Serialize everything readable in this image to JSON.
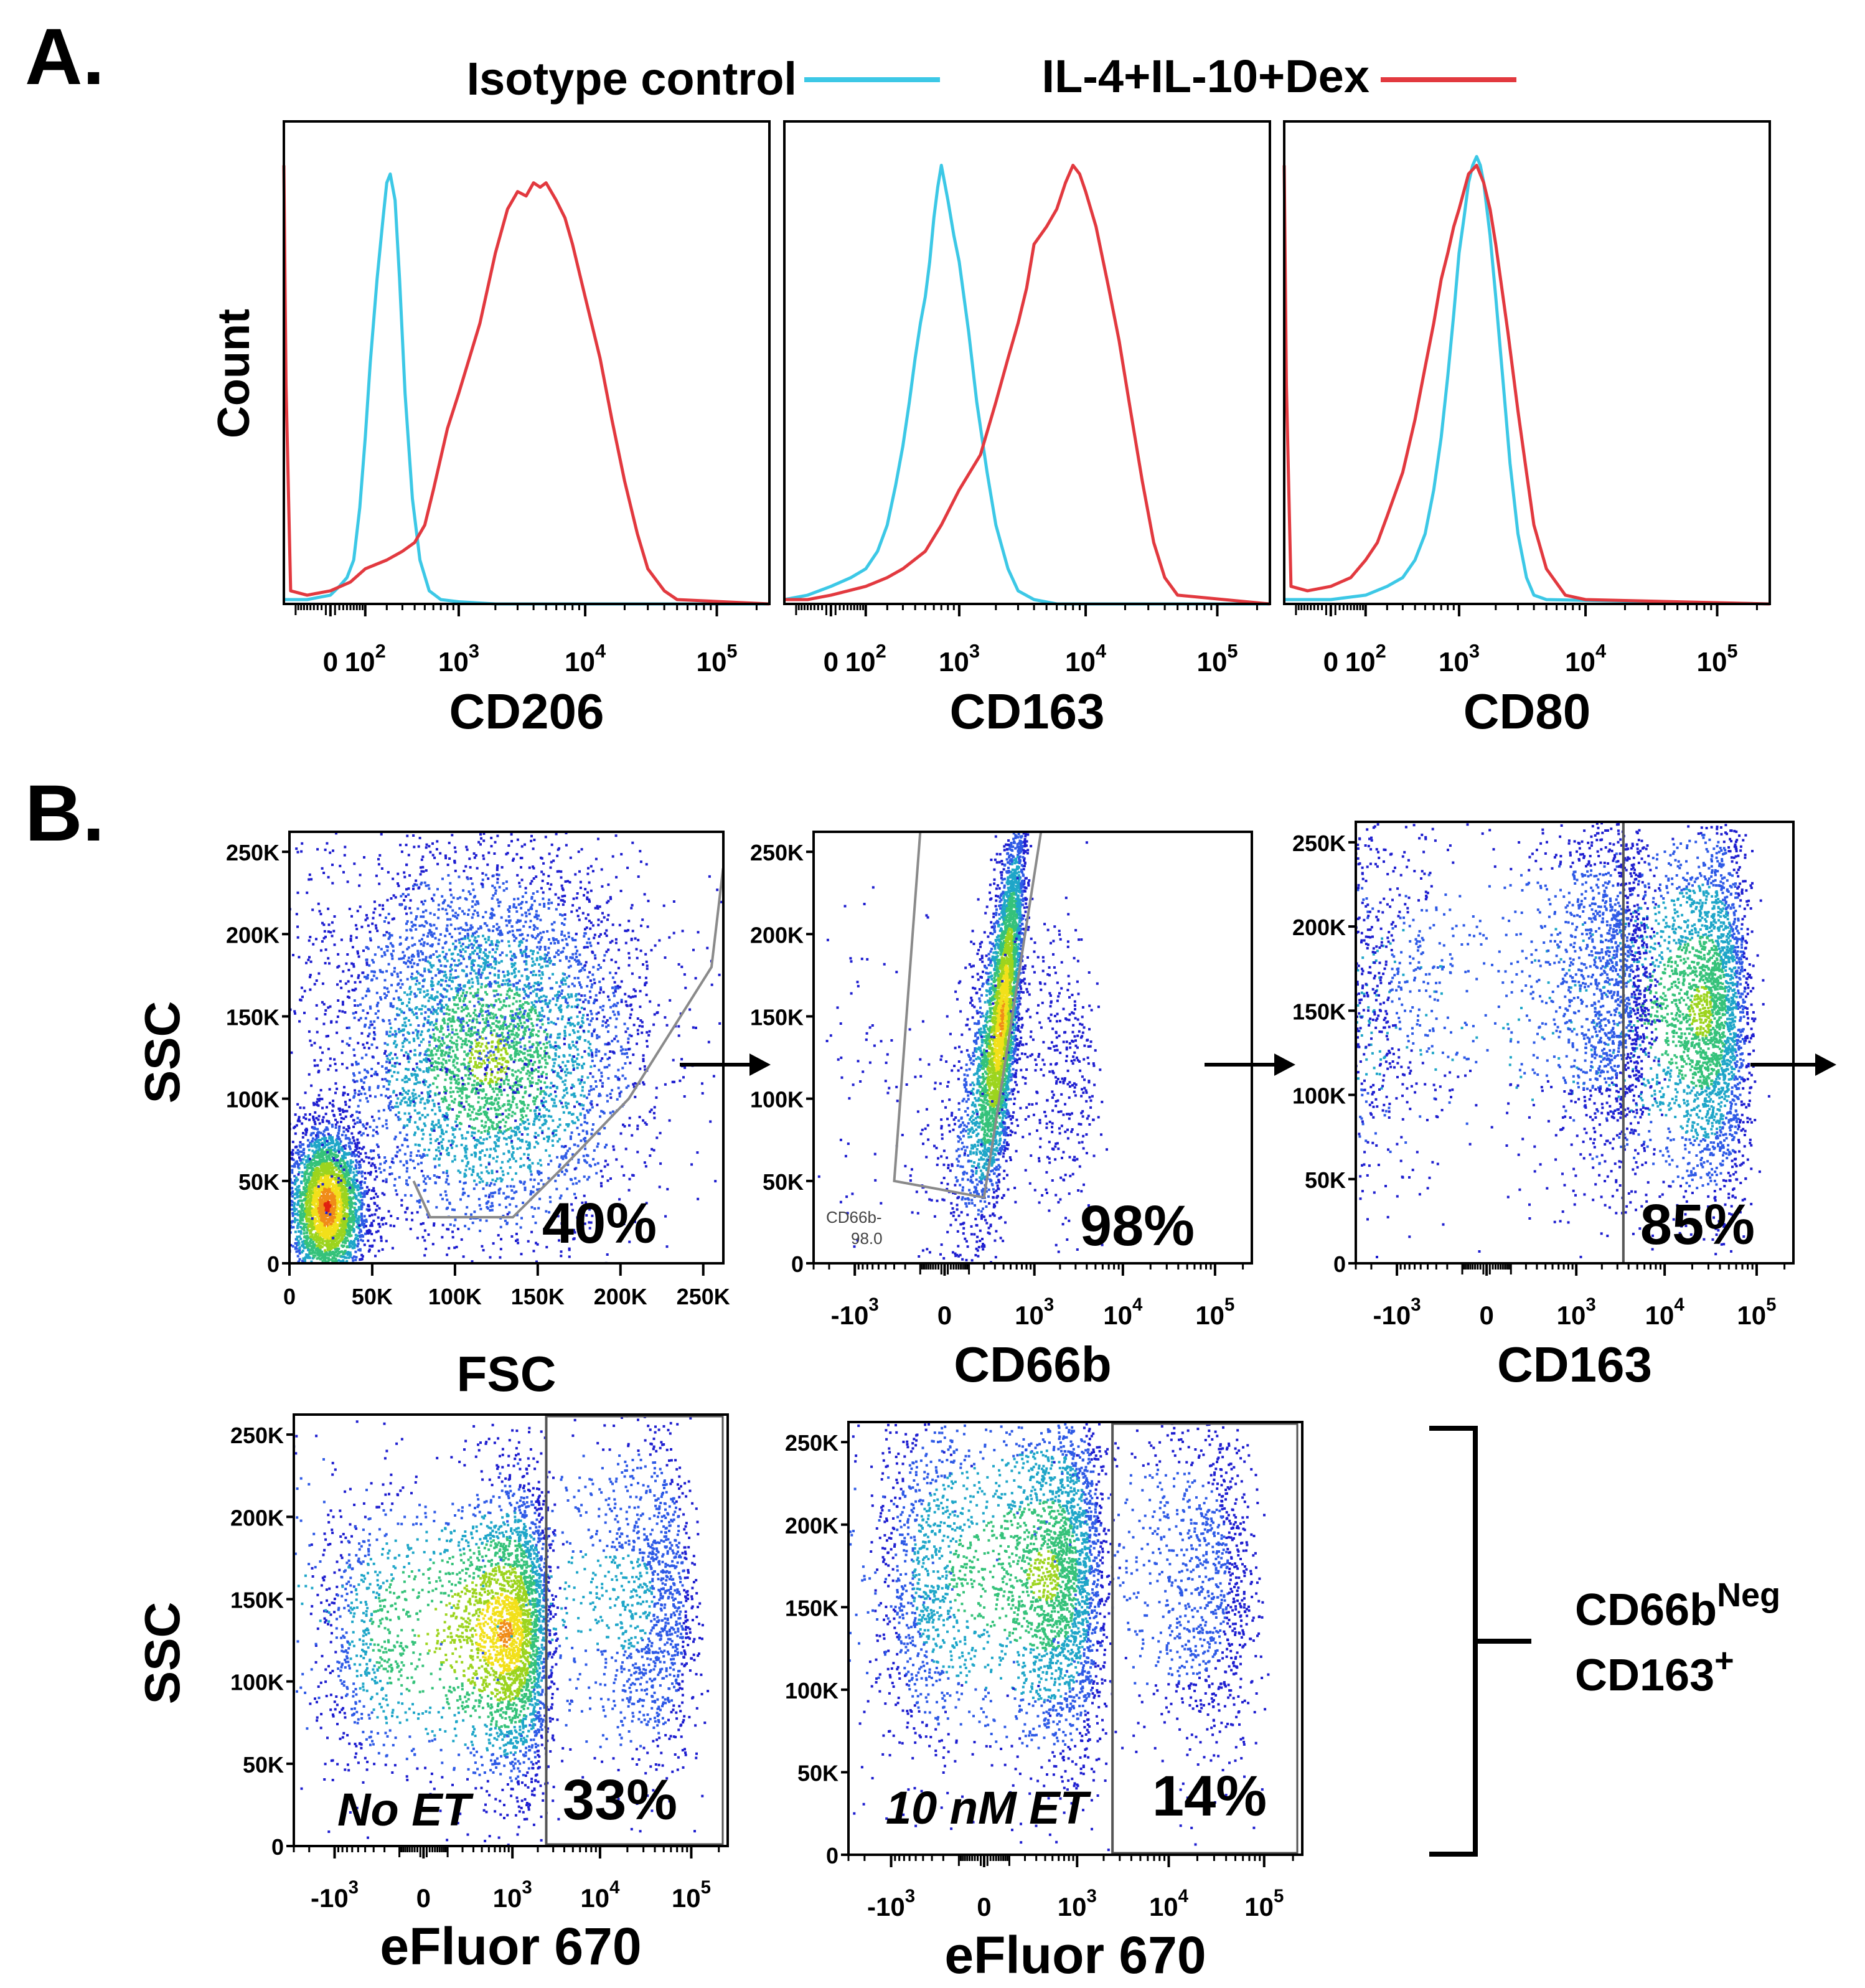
{
  "panel_a": {
    "label": "A.",
    "legend": [
      {
        "name": "Isotype control",
        "color": "#3cc8e6"
      },
      {
        "name": "IL-4+IL-10+Dex",
        "color": "#e2393f"
      }
    ],
    "ylabel": "Count"
  },
  "panel_b": {
    "label": "B.",
    "bracket_label_line1": "CD66b",
    "bracket_label_line1_sup": "Neg",
    "bracket_label_line2": "CD163",
    "bracket_label_line2_sup": "+"
  },
  "density_colors": [
    "#1f1fd0",
    "#2e5ae6",
    "#1fa6c8",
    "#35c27a",
    "#9cd41e",
    "#f2e01a",
    "#f08c18",
    "#e02010"
  ],
  "chart_data": [
    {
      "id": "a1",
      "type": "line",
      "title": "",
      "xlabel": "CD206",
      "ylabel": "Count",
      "xscale": "biexponential",
      "x_tick_labels": [
        {
          "base": "0",
          "exp": ""
        },
        {
          "base": "10",
          "exp": "2"
        },
        {
          "base": "10",
          "exp": "3"
        },
        {
          "base": "10",
          "exp": "4"
        },
        {
          "base": "10",
          "exp": "5"
        }
      ],
      "x_ticks": [
        0,
        100,
        1000,
        10000,
        100000
      ],
      "xlim": [
        -150,
        250000
      ],
      "ylim": [
        0,
        1.1
      ],
      "series": [
        {
          "name": "Isotype control",
          "color": "#3cc8e6",
          "x": [
            -150,
            -60,
            0,
            20,
            40,
            60,
            80,
            100,
            120,
            150,
            180,
            200,
            220,
            250,
            280,
            320,
            380,
            450,
            550,
            700,
            1000,
            2000,
            5000,
            250000
          ],
          "y": [
            0.01,
            0.01,
            0.02,
            0.04,
            0.06,
            0.1,
            0.22,
            0.38,
            0.55,
            0.74,
            0.88,
            0.96,
            0.98,
            0.92,
            0.74,
            0.48,
            0.24,
            0.1,
            0.03,
            0.01,
            0.005,
            0,
            0,
            0
          ]
        },
        {
          "name": "IL-4+IL-10+Dex",
          "color": "#e2393f",
          "x": [
            -150,
            -140,
            -120,
            -60,
            0,
            50,
            100,
            200,
            300,
            400,
            500,
            600,
            800,
            1000,
            1500,
            2000,
            2500,
            3000,
            3500,
            4000,
            4500,
            5000,
            6000,
            7000,
            8000,
            10000,
            13000,
            16000,
            20000,
            25000,
            30000,
            40000,
            50000,
            250000
          ],
          "y": [
            1.0,
            0.5,
            0.03,
            0.02,
            0.03,
            0.05,
            0.08,
            0.1,
            0.12,
            0.14,
            0.18,
            0.26,
            0.4,
            0.48,
            0.64,
            0.8,
            0.9,
            0.94,
            0.93,
            0.96,
            0.95,
            0.96,
            0.92,
            0.88,
            0.82,
            0.7,
            0.56,
            0.42,
            0.28,
            0.16,
            0.08,
            0.03,
            0.01,
            0
          ]
        }
      ]
    },
    {
      "id": "a2",
      "type": "line",
      "title": "",
      "xlabel": "CD163",
      "ylabel": "Count",
      "xscale": "biexponential",
      "x_tick_labels": [
        {
          "base": "0",
          "exp": ""
        },
        {
          "base": "10",
          "exp": "2"
        },
        {
          "base": "10",
          "exp": "3"
        },
        {
          "base": "10",
          "exp": "4"
        },
        {
          "base": "10",
          "exp": "5"
        }
      ],
      "x_ticks": [
        0,
        100,
        1000,
        10000,
        100000
      ],
      "xlim": [
        -150,
        250000
      ],
      "ylim": [
        0,
        1.1
      ],
      "series": [
        {
          "name": "Isotype control",
          "color": "#3cc8e6",
          "x": [
            -150,
            -60,
            0,
            50,
            100,
            150,
            200,
            250,
            300,
            350,
            400,
            450,
            500,
            550,
            600,
            650,
            700,
            800,
            900,
            1000,
            1200,
            1400,
            1700,
            2000,
            2500,
            3000,
            4000,
            6000,
            250000
          ],
          "y": [
            0.01,
            0.02,
            0.04,
            0.06,
            0.08,
            0.12,
            0.18,
            0.27,
            0.36,
            0.46,
            0.56,
            0.64,
            0.7,
            0.78,
            0.88,
            0.95,
            1.0,
            0.92,
            0.84,
            0.78,
            0.62,
            0.46,
            0.3,
            0.18,
            0.08,
            0.03,
            0.01,
            0,
            0
          ]
        },
        {
          "name": "IL-4+IL-10+Dex",
          "color": "#e2393f",
          "x": [
            -150,
            -60,
            0,
            100,
            200,
            300,
            500,
            700,
            1000,
            1500,
            2000,
            2500,
            3000,
            3500,
            4000,
            5000,
            6000,
            7000,
            8000,
            9000,
            10000,
            12000,
            15000,
            18000,
            22000,
            27000,
            33000,
            40000,
            50000,
            250000
          ],
          "y": [
            0.01,
            0.01,
            0.02,
            0.04,
            0.06,
            0.08,
            0.12,
            0.18,
            0.26,
            0.34,
            0.46,
            0.56,
            0.64,
            0.72,
            0.82,
            0.86,
            0.9,
            0.96,
            1.0,
            0.98,
            0.94,
            0.86,
            0.72,
            0.6,
            0.44,
            0.28,
            0.14,
            0.06,
            0.02,
            0
          ]
        }
      ]
    },
    {
      "id": "a3",
      "type": "line",
      "title": "",
      "xlabel": "CD80",
      "ylabel": "Count",
      "xscale": "biexponential",
      "x_tick_labels": [
        {
          "base": "0",
          "exp": ""
        },
        {
          "base": "10",
          "exp": "2"
        },
        {
          "base": "10",
          "exp": "3"
        },
        {
          "base": "10",
          "exp": "4"
        },
        {
          "base": "10",
          "exp": "5"
        }
      ],
      "x_ticks": [
        0,
        100,
        1000,
        10000,
        100000
      ],
      "xlim": [
        -150,
        250000
      ],
      "ylim": [
        0,
        1.1
      ],
      "series": [
        {
          "name": "Isotype control",
          "color": "#3cc8e6",
          "x": [
            -150,
            -60,
            0,
            100,
            200,
            300,
            400,
            500,
            600,
            700,
            800,
            900,
            1000,
            1100,
            1200,
            1300,
            1400,
            1500,
            1600,
            1800,
            2000,
            2300,
            2600,
            3000,
            3500,
            4000,
            5000,
            250000
          ],
          "y": [
            0.01,
            0.01,
            0.01,
            0.02,
            0.04,
            0.06,
            0.1,
            0.16,
            0.26,
            0.38,
            0.52,
            0.66,
            0.8,
            0.88,
            0.96,
            1.0,
            1.02,
            1.0,
            0.96,
            0.84,
            0.7,
            0.5,
            0.32,
            0.16,
            0.06,
            0.02,
            0.01,
            0
          ]
        },
        {
          "name": "IL-4+IL-10+Dex",
          "color": "#e2393f",
          "x": [
            -150,
            -140,
            -120,
            -60,
            0,
            50,
            100,
            150,
            200,
            300,
            400,
            500,
            600,
            700,
            800,
            900,
            1000,
            1200,
            1400,
            1600,
            1800,
            2000,
            2500,
            3000,
            3500,
            4000,
            5000,
            7000,
            10000,
            250000
          ],
          "y": [
            1.0,
            0.5,
            0.04,
            0.03,
            0.04,
            0.06,
            0.1,
            0.14,
            0.2,
            0.3,
            0.42,
            0.54,
            0.64,
            0.74,
            0.8,
            0.86,
            0.9,
            0.98,
            1.0,
            0.96,
            0.9,
            0.82,
            0.62,
            0.44,
            0.3,
            0.18,
            0.08,
            0.02,
            0.01,
            0
          ]
        }
      ]
    },
    {
      "id": "b1",
      "type": "scatter",
      "title": "",
      "xlabel": "FSC",
      "ylabel": "SSC",
      "xscale": "linear",
      "x_tick_labels": [
        {
          "base": "0",
          "exp": ""
        },
        {
          "base": "50K",
          "exp": ""
        },
        {
          "base": "100K",
          "exp": ""
        },
        {
          "base": "150K",
          "exp": ""
        },
        {
          "base": "200K",
          "exp": ""
        },
        {
          "base": "250K",
          "exp": ""
        }
      ],
      "x_ticks": [
        0,
        50000,
        100000,
        150000,
        200000,
        250000
      ],
      "y_tick_labels": [
        "0",
        "50K",
        "100K",
        "150K",
        "200K",
        "250K"
      ],
      "y_ticks": [
        0,
        50000,
        100000,
        150000,
        200000,
        250000
      ],
      "xlim": [
        0,
        262144
      ],
      "ylim": [
        0,
        262144
      ],
      "gate_percent": "40%",
      "gate_label": "",
      "gate_sublabel": "",
      "clusters": [
        {
          "cx": 22000,
          "cy": 35000,
          "sx": 12000,
          "sy": 25000,
          "n": 3200,
          "peak": 7
        },
        {
          "cx": 120000,
          "cy": 125000,
          "sx": 45000,
          "sy": 55000,
          "n": 3800,
          "peak": 4
        },
        {
          "cx": 110000,
          "cy": 180000,
          "sx": 60000,
          "sy": 55000,
          "n": 1200,
          "peak": 1
        }
      ],
      "gate_polygon": [
        [
          75000,
          50000
        ],
        [
          85000,
          28000
        ],
        [
          135000,
          28000
        ],
        [
          165000,
          58000
        ],
        [
          205000,
          100000
        ],
        [
          255000,
          180000
        ],
        [
          262000,
          240000
        ]
      ]
    },
    {
      "id": "b2",
      "type": "scatter",
      "title": "",
      "xlabel": "CD66b",
      "ylabel": "",
      "xscale": "biexponential",
      "x_tick_labels": [
        {
          "base": "-10",
          "exp": "3"
        },
        {
          "base": "0",
          "exp": ""
        },
        {
          "base": "10",
          "exp": "3"
        },
        {
          "base": "10",
          "exp": "4"
        },
        {
          "base": "10",
          "exp": "5"
        }
      ],
      "x_ticks": [
        -1000,
        0,
        1000,
        10000,
        100000
      ],
      "y_tick_labels": [
        "0",
        "50K",
        "100K",
        "150K",
        "200K",
        "250K"
      ],
      "y_ticks": [
        0,
        50000,
        100000,
        150000,
        200000,
        250000
      ],
      "xlim": [
        -3000,
        250000
      ],
      "ylim": [
        0,
        262144
      ],
      "gate_percent": "98%",
      "gate_label": "CD66b-",
      "gate_sublabel": "98.0",
      "clusters": [
        {
          "cx": 150,
          "cy": 150000,
          "sx": 120,
          "sy": 60000,
          "n": 4000,
          "peak": 6,
          "tilt": 1
        },
        {
          "cx": 1500,
          "cy": 120000,
          "sx": 1500,
          "sy": 50000,
          "n": 500,
          "peak": 0
        }
      ],
      "gate_polygon": [
        [
          -100,
          262144
        ],
        [
          -300,
          50000
        ],
        [
          200,
          40000
        ],
        [
          1200,
          262144
        ]
      ]
    },
    {
      "id": "b3",
      "type": "scatter",
      "title": "",
      "xlabel": "CD163",
      "ylabel": "",
      "xscale": "biexponential",
      "x_tick_labels": [
        {
          "base": "-10",
          "exp": "3"
        },
        {
          "base": "0",
          "exp": ""
        },
        {
          "base": "10",
          "exp": "3"
        },
        {
          "base": "10",
          "exp": "4"
        },
        {
          "base": "10",
          "exp": "5"
        }
      ],
      "x_ticks": [
        -1000,
        0,
        1000,
        10000,
        100000
      ],
      "y_tick_labels": [
        "0",
        "50K",
        "100K",
        "150K",
        "200K",
        "250K"
      ],
      "y_ticks": [
        0,
        50000,
        100000,
        150000,
        200000,
        250000
      ],
      "xlim": [
        -3000,
        250000
      ],
      "ylim": [
        0,
        262144
      ],
      "gate_percent": "85%",
      "gate_label": "",
      "gate_sublabel": "",
      "gate_x": 3500,
      "clusters": [
        {
          "cx": 25000,
          "cy": 150000,
          "sx": 25000,
          "sy": 55000,
          "n": 3500,
          "peak": 4
        },
        {
          "cx": 1500,
          "cy": 170000,
          "sx": 2500,
          "sy": 60000,
          "n": 2200,
          "peak": 1
        }
      ]
    },
    {
      "id": "b4",
      "type": "scatter",
      "title": "",
      "xlabel": "eFluor 670",
      "ylabel": "SSC",
      "xscale": "biexponential",
      "x_tick_labels": [
        {
          "base": "-10",
          "exp": "3"
        },
        {
          "base": "0",
          "exp": ""
        },
        {
          "base": "10",
          "exp": "3"
        },
        {
          "base": "10",
          "exp": "4"
        },
        {
          "base": "10",
          "exp": "5"
        }
      ],
      "x_ticks": [
        -1000,
        0,
        1000,
        10000,
        100000
      ],
      "y_tick_labels": [
        "0",
        "50K",
        "100K",
        "150K",
        "200K",
        "250K"
      ],
      "y_ticks": [
        0,
        50000,
        100000,
        150000,
        200000,
        250000
      ],
      "xlim": [
        -3000,
        250000
      ],
      "ylim": [
        0,
        262144
      ],
      "condition": "No ET",
      "gate_percent": "33%",
      "gate_x": 2500,
      "clusters": [
        {
          "cx": 800,
          "cy": 130000,
          "sx": 900,
          "sy": 45000,
          "n": 3500,
          "peak": 6
        },
        {
          "cx": 15000,
          "cy": 150000,
          "sx": 40000,
          "sy": 55000,
          "n": 2000,
          "peak": 2
        }
      ]
    },
    {
      "id": "b5",
      "type": "scatter",
      "title": "",
      "xlabel": "eFluor 670",
      "ylabel": "",
      "xscale": "biexponential",
      "x_tick_labels": [
        {
          "base": "-10",
          "exp": "3"
        },
        {
          "base": "0",
          "exp": ""
        },
        {
          "base": "10",
          "exp": "3"
        },
        {
          "base": "10",
          "exp": "4"
        },
        {
          "base": "10",
          "exp": "5"
        }
      ],
      "x_ticks": [
        -1000,
        0,
        1000,
        10000,
        100000
      ],
      "y_tick_labels": [
        "0",
        "50K",
        "100K",
        "150K",
        "200K",
        "250K"
      ],
      "y_ticks": [
        0,
        50000,
        100000,
        150000,
        200000,
        250000
      ],
      "xlim": [
        -3000,
        250000
      ],
      "ylim": [
        0,
        262144
      ],
      "condition": "10 nM ET",
      "gate_percent": "14%",
      "gate_x": 2500,
      "clusters": [
        {
          "cx": 400,
          "cy": 170000,
          "sx": 700,
          "sy": 55000,
          "n": 3500,
          "peak": 4
        },
        {
          "cx": 8000,
          "cy": 170000,
          "sx": 30000,
          "sy": 60000,
          "n": 1800,
          "peak": 1
        }
      ]
    }
  ]
}
